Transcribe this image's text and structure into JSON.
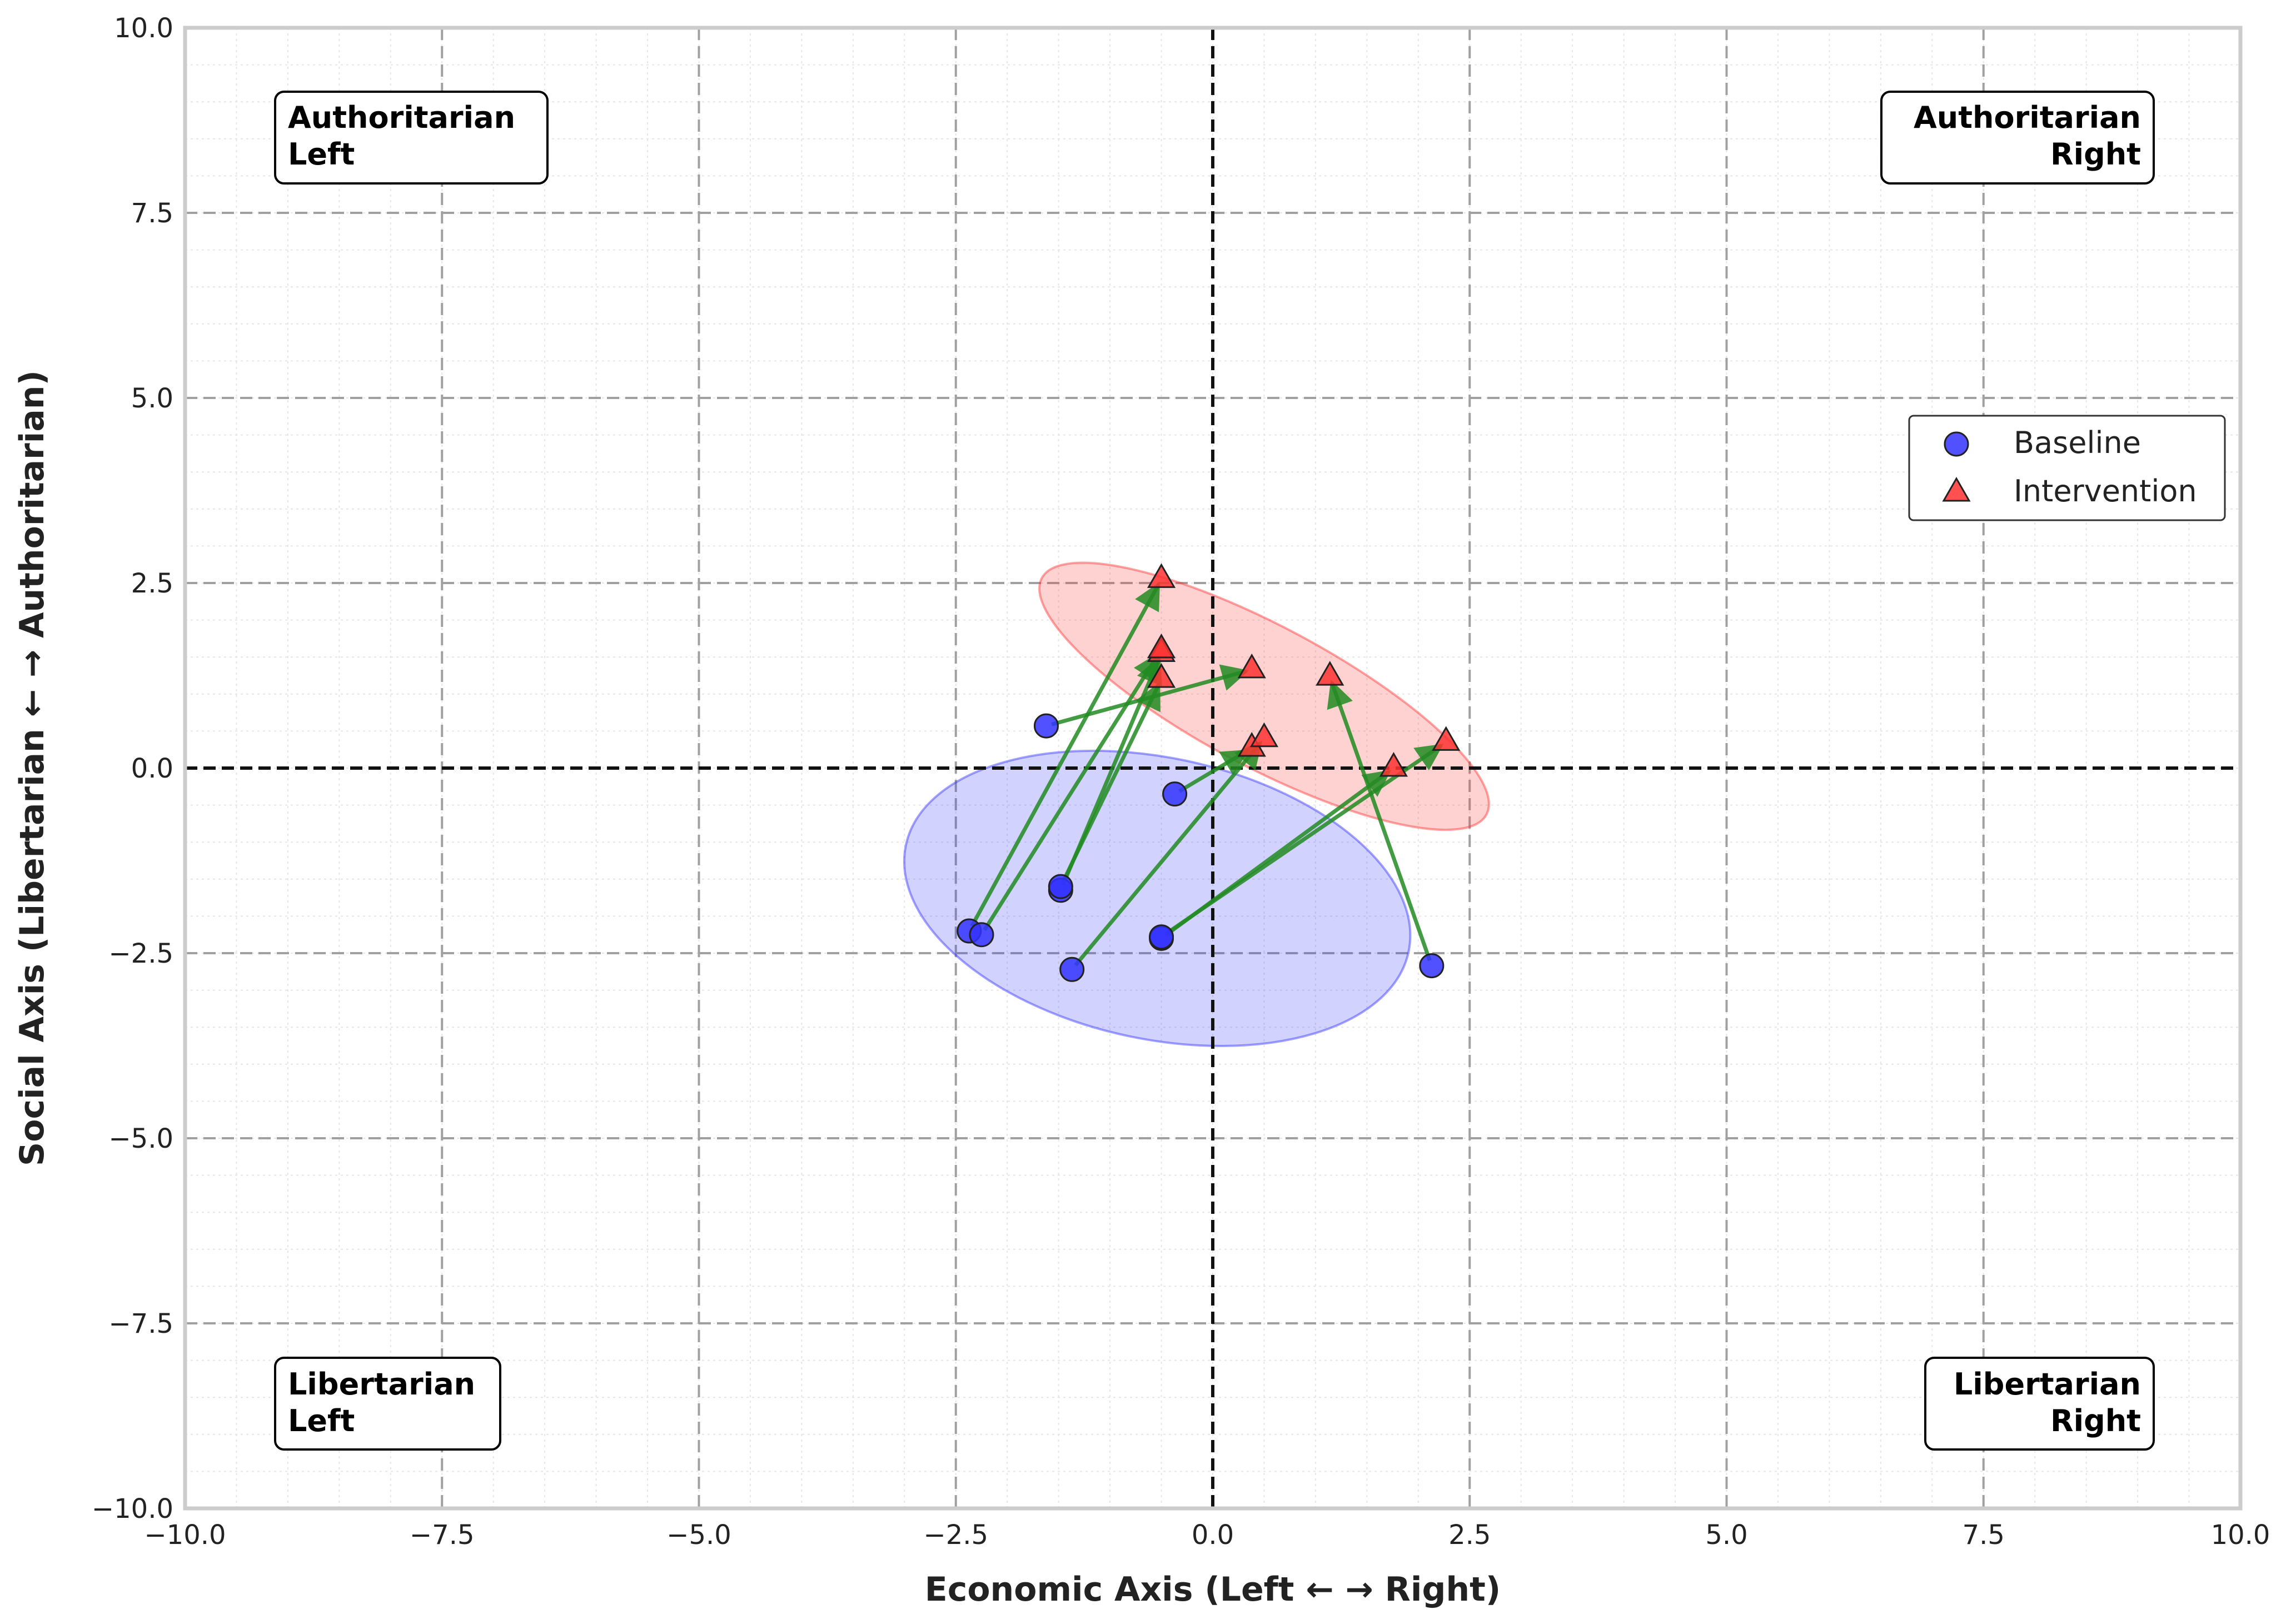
{
  "chart_data": {
    "type": "scatter",
    "title": "",
    "xlabel": "Economic Axis (Left ← → Right)",
    "ylabel": "Social Axis (Libertarian ← → Authoritarian)",
    "xlim": [
      -10,
      10
    ],
    "ylim": [
      -10,
      10
    ],
    "xticks": [
      -10,
      -7.5,
      -5,
      -2.5,
      0,
      2.5,
      5,
      7.5,
      10
    ],
    "yticks": [
      -10,
      -7.5,
      -5,
      -2.5,
      0,
      2.5,
      5,
      7.5,
      10
    ],
    "xtick_labels": [
      "−10.0",
      "−7.5",
      "−5.0",
      "−2.5",
      "0.0",
      "2.5",
      "5.0",
      "7.5",
      "10.0"
    ],
    "ytick_labels": [
      "−10.0",
      "−7.5",
      "−5.0",
      "−2.5",
      "0.0",
      "2.5",
      "5.0",
      "7.5",
      "10.0"
    ],
    "grid": true,
    "minor_grid": true,
    "legend_position": "center-right",
    "quadrant_labels": {
      "top_left": [
        "Authoritarian",
        "Left"
      ],
      "top_right": [
        "Authoritarian",
        "Right"
      ],
      "bottom_left": [
        "Libertarian",
        "Left"
      ],
      "bottom_right": [
        "Libertarian",
        "Right"
      ]
    },
    "series": [
      {
        "name": "Baseline",
        "marker": "circle",
        "color": "#3333ff",
        "points": [
          [
            -1.62,
            0.57
          ],
          [
            -0.37,
            -0.35
          ],
          [
            -1.48,
            -1.65
          ],
          [
            -1.48,
            -1.6
          ],
          [
            -2.37,
            -2.2
          ],
          [
            -2.25,
            -2.25
          ],
          [
            -1.37,
            -2.72
          ],
          [
            -0.5,
            -2.3
          ],
          [
            -0.5,
            -2.28
          ],
          [
            2.13,
            -2.67
          ]
        ]
      },
      {
        "name": "Intervention",
        "marker": "triangle",
        "color": "#ff3333",
        "points": [
          [
            0.38,
            1.33
          ],
          [
            0.38,
            0.27
          ],
          [
            -0.5,
            1.55
          ],
          [
            -0.5,
            1.2
          ],
          [
            -0.5,
            2.55
          ],
          [
            -0.5,
            1.6
          ],
          [
            0.5,
            0.4
          ],
          [
            1.76,
            0.0
          ],
          [
            2.27,
            0.35
          ],
          [
            1.14,
            1.23
          ]
        ]
      }
    ],
    "arrow_color": "#228b22",
    "confidence_ellipses": [
      {
        "series": "Baseline",
        "center": [
          -0.54,
          -1.76
        ],
        "half_width": 2.5,
        "half_height": 1.9,
        "angle_deg": -12,
        "color": "#3333ff"
      },
      {
        "series": "Intervention",
        "center": [
          0.5,
          0.97
        ],
        "half_width": 2.45,
        "half_height": 0.95,
        "angle_deg": -28,
        "color": "#ff3333"
      }
    ]
  }
}
